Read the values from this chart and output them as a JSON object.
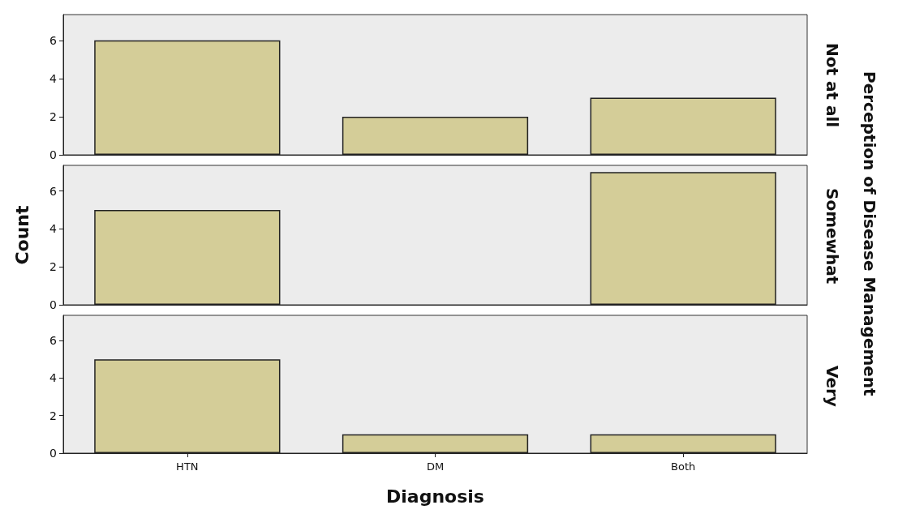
{
  "chart_data": [
    {
      "type": "bar",
      "y2label": "Not at all",
      "categories": [
        null,
        null,
        null
      ],
      "values": [
        6,
        2,
        3
      ],
      "color": "#d4cd98",
      "ylim": [
        0,
        7.35
      ],
      "yticks": [
        0,
        2,
        4,
        6
      ],
      "grid": false,
      "tick_labels": "y"
    },
    {
      "type": "bar",
      "y2label": "Somewhat",
      "ylabel": "Count",
      "annotations": [
        "Perception of Disease Management"
      ],
      "categories": [
        null,
        null,
        null
      ],
      "values": [
        5,
        0,
        7
      ],
      "color": "#d4cd98",
      "ylim": [
        0,
        7.35
      ],
      "yticks": [
        0,
        2,
        4,
        6
      ],
      "grid": false,
      "tick_labels": "y"
    },
    {
      "type": "bar",
      "y2label": "Very",
      "xlabel": "Diagnosis",
      "categories": [
        "HTN",
        "DM",
        "Both"
      ],
      "values": [
        5,
        1,
        1
      ],
      "color": "#d4cd98",
      "ylim": [
        0,
        7.35
      ],
      "yticks": [
        0,
        2,
        4,
        6
      ],
      "grid": false
    }
  ]
}
